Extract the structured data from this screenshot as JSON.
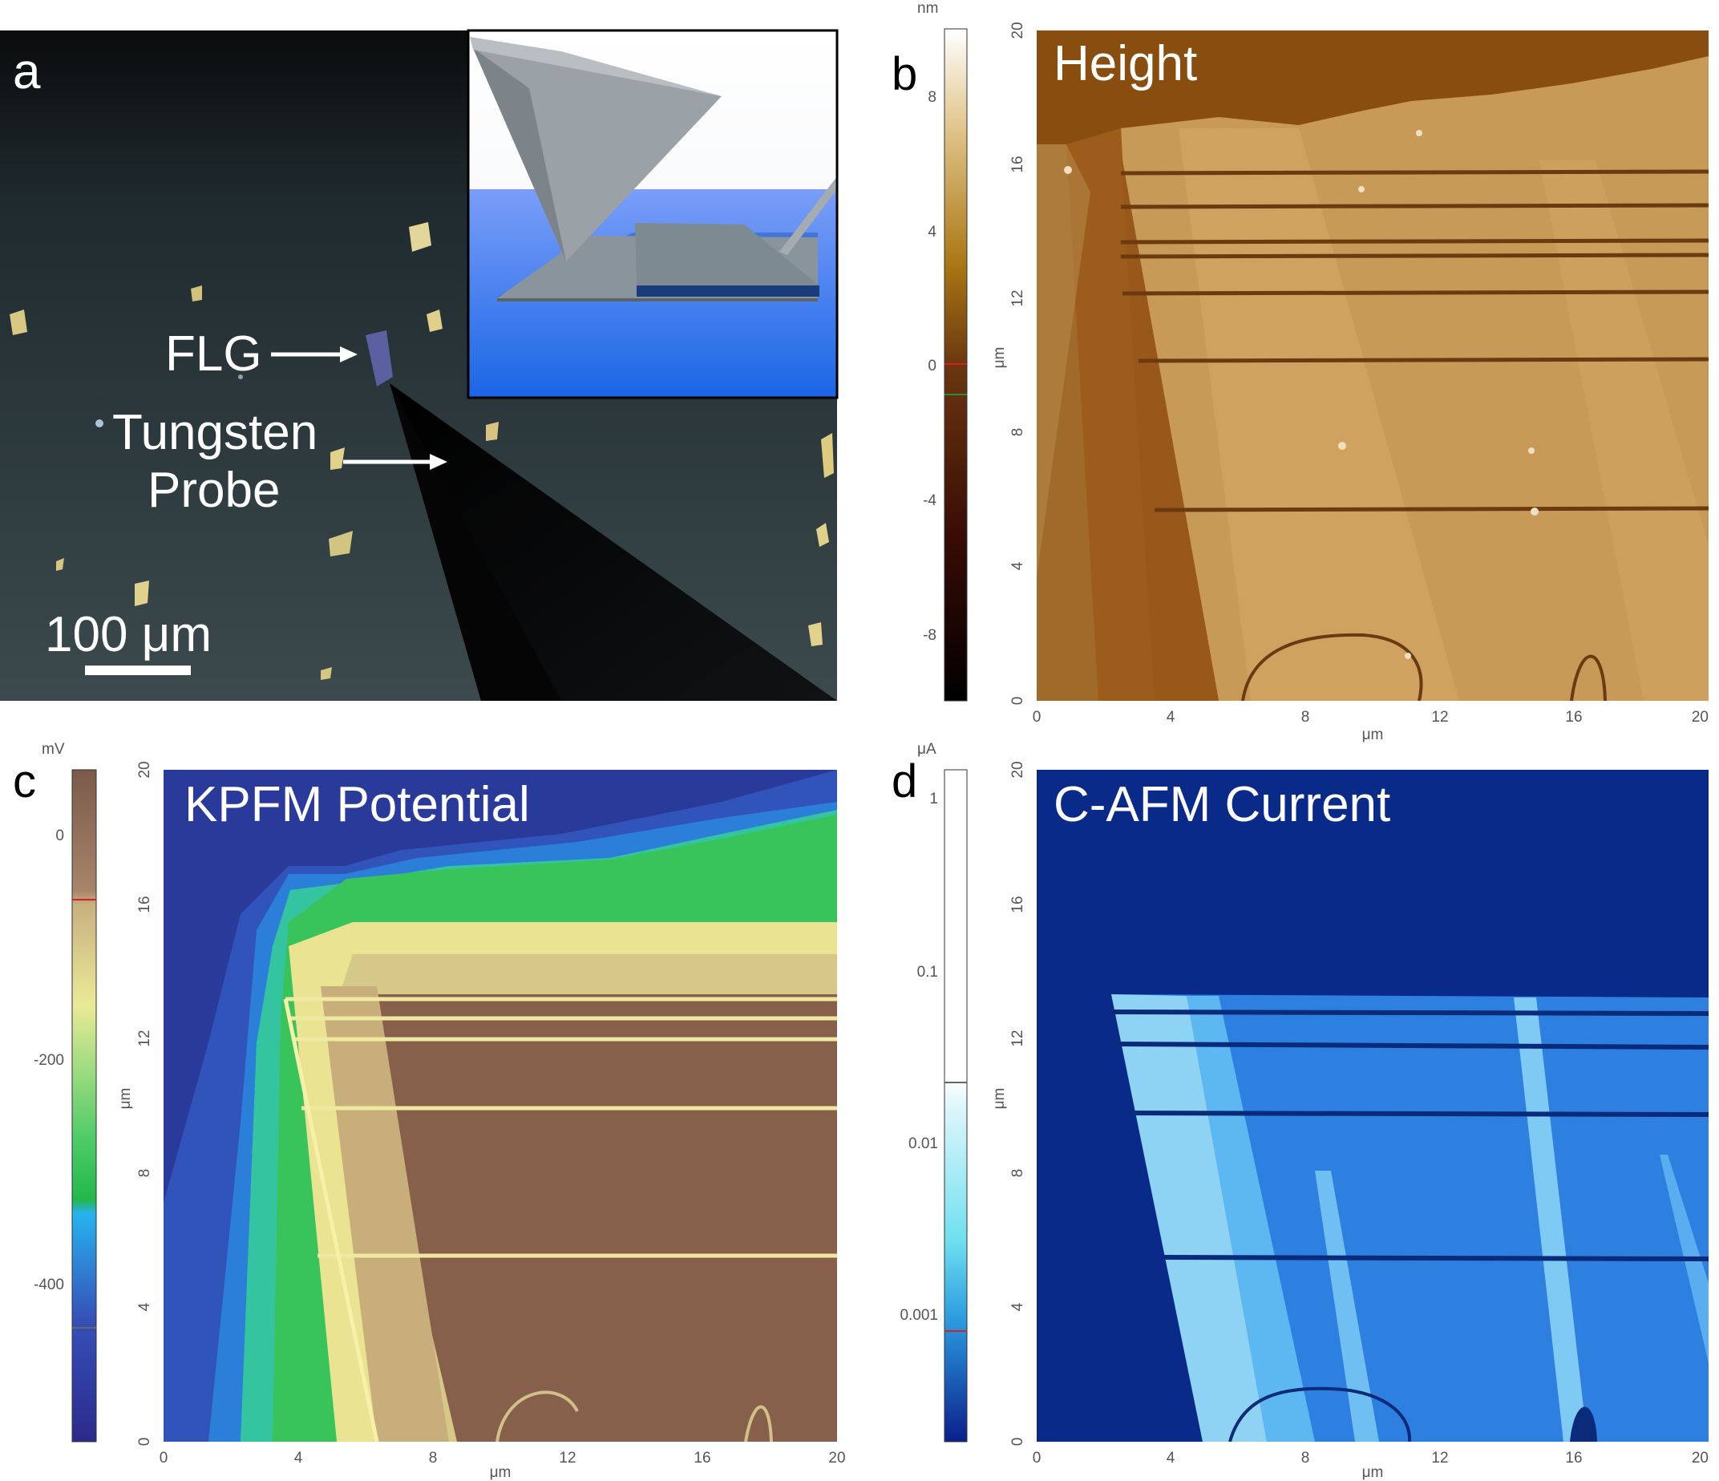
{
  "panels": {
    "a": {
      "label": "a",
      "flg": "FLG",
      "probe_line1": "Tungsten",
      "probe_line2": "Probe",
      "scale_bar": "100 μm"
    },
    "b": {
      "label": "b",
      "title": "Height",
      "colorbar": {
        "unit": "nm",
        "ticks": [
          "8",
          "4",
          "0",
          "-4",
          "-8"
        ]
      },
      "y_ticks": [
        "20",
        "16",
        "12",
        "8",
        "4",
        "0"
      ],
      "x_ticks": [
        "0",
        "4",
        "8",
        "12",
        "16",
        "20"
      ],
      "y_unit": "μm",
      "x_unit": "μm"
    },
    "c": {
      "label": "c",
      "title": "KPFM Potential",
      "colorbar": {
        "unit": "mV",
        "ticks": [
          "0",
          "-200",
          "-400"
        ]
      },
      "y_ticks": [
        "20",
        "16",
        "12",
        "8",
        "4",
        "0"
      ],
      "x_ticks": [
        "0",
        "4",
        "8",
        "12",
        "16",
        "20"
      ],
      "y_unit": "μm",
      "x_unit": "μm"
    },
    "d": {
      "label": "d",
      "title": "C-AFM Current",
      "colorbar": {
        "unit": "μA",
        "ticks": [
          "1",
          "0.1",
          "0.01",
          "0.001"
        ]
      },
      "y_ticks": [
        "20",
        "16",
        "12",
        "8",
        "4",
        "0"
      ],
      "x_ticks": [
        "0",
        "4",
        "8",
        "12",
        "16",
        "20"
      ],
      "y_unit": "μm",
      "x_unit": "μm"
    }
  },
  "colors": {
    "height_bg": "#8a4d10",
    "height_flake": "#c89a58",
    "kpfm_bg": "#2a3a9a",
    "kpfm_flake": "#86604a",
    "kpfm_edge": "#2ec35a",
    "cafm_bg": "#0a2a8a",
    "cafm_flake": "#2d7fe0"
  }
}
